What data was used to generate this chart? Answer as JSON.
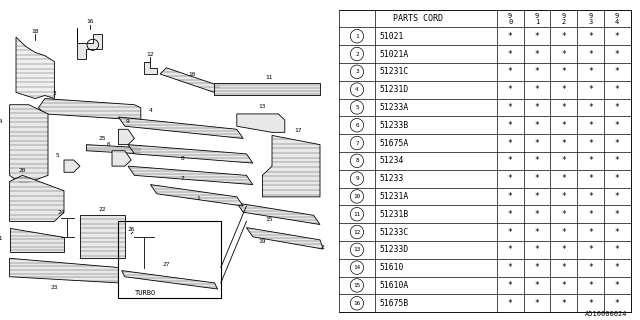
{
  "part_code_header": "PARTS CORD",
  "year_headers": [
    "9\n0",
    "9\n1",
    "9\n2",
    "9\n3",
    "9\n4"
  ],
  "parts": [
    {
      "num": 1,
      "code": "51021"
    },
    {
      "num": 2,
      "code": "51021A"
    },
    {
      "num": 3,
      "code": "51231C"
    },
    {
      "num": 4,
      "code": "51231D"
    },
    {
      "num": 5,
      "code": "51233A"
    },
    {
      "num": 6,
      "code": "51233B"
    },
    {
      "num": 7,
      "code": "51675A"
    },
    {
      "num": 8,
      "code": "51234"
    },
    {
      "num": 9,
      "code": "51233"
    },
    {
      "num": 10,
      "code": "51231A"
    },
    {
      "num": 11,
      "code": "51231B"
    },
    {
      "num": 12,
      "code": "51233C"
    },
    {
      "num": 13,
      "code": "51233D"
    },
    {
      "num": 14,
      "code": "51610"
    },
    {
      "num": 15,
      "code": "51610A"
    },
    {
      "num": 16,
      "code": "51675B"
    }
  ],
  "star_symbol": "*",
  "diagram_label": "A510000024",
  "bg_color": "#ffffff",
  "line_color": "#000000"
}
